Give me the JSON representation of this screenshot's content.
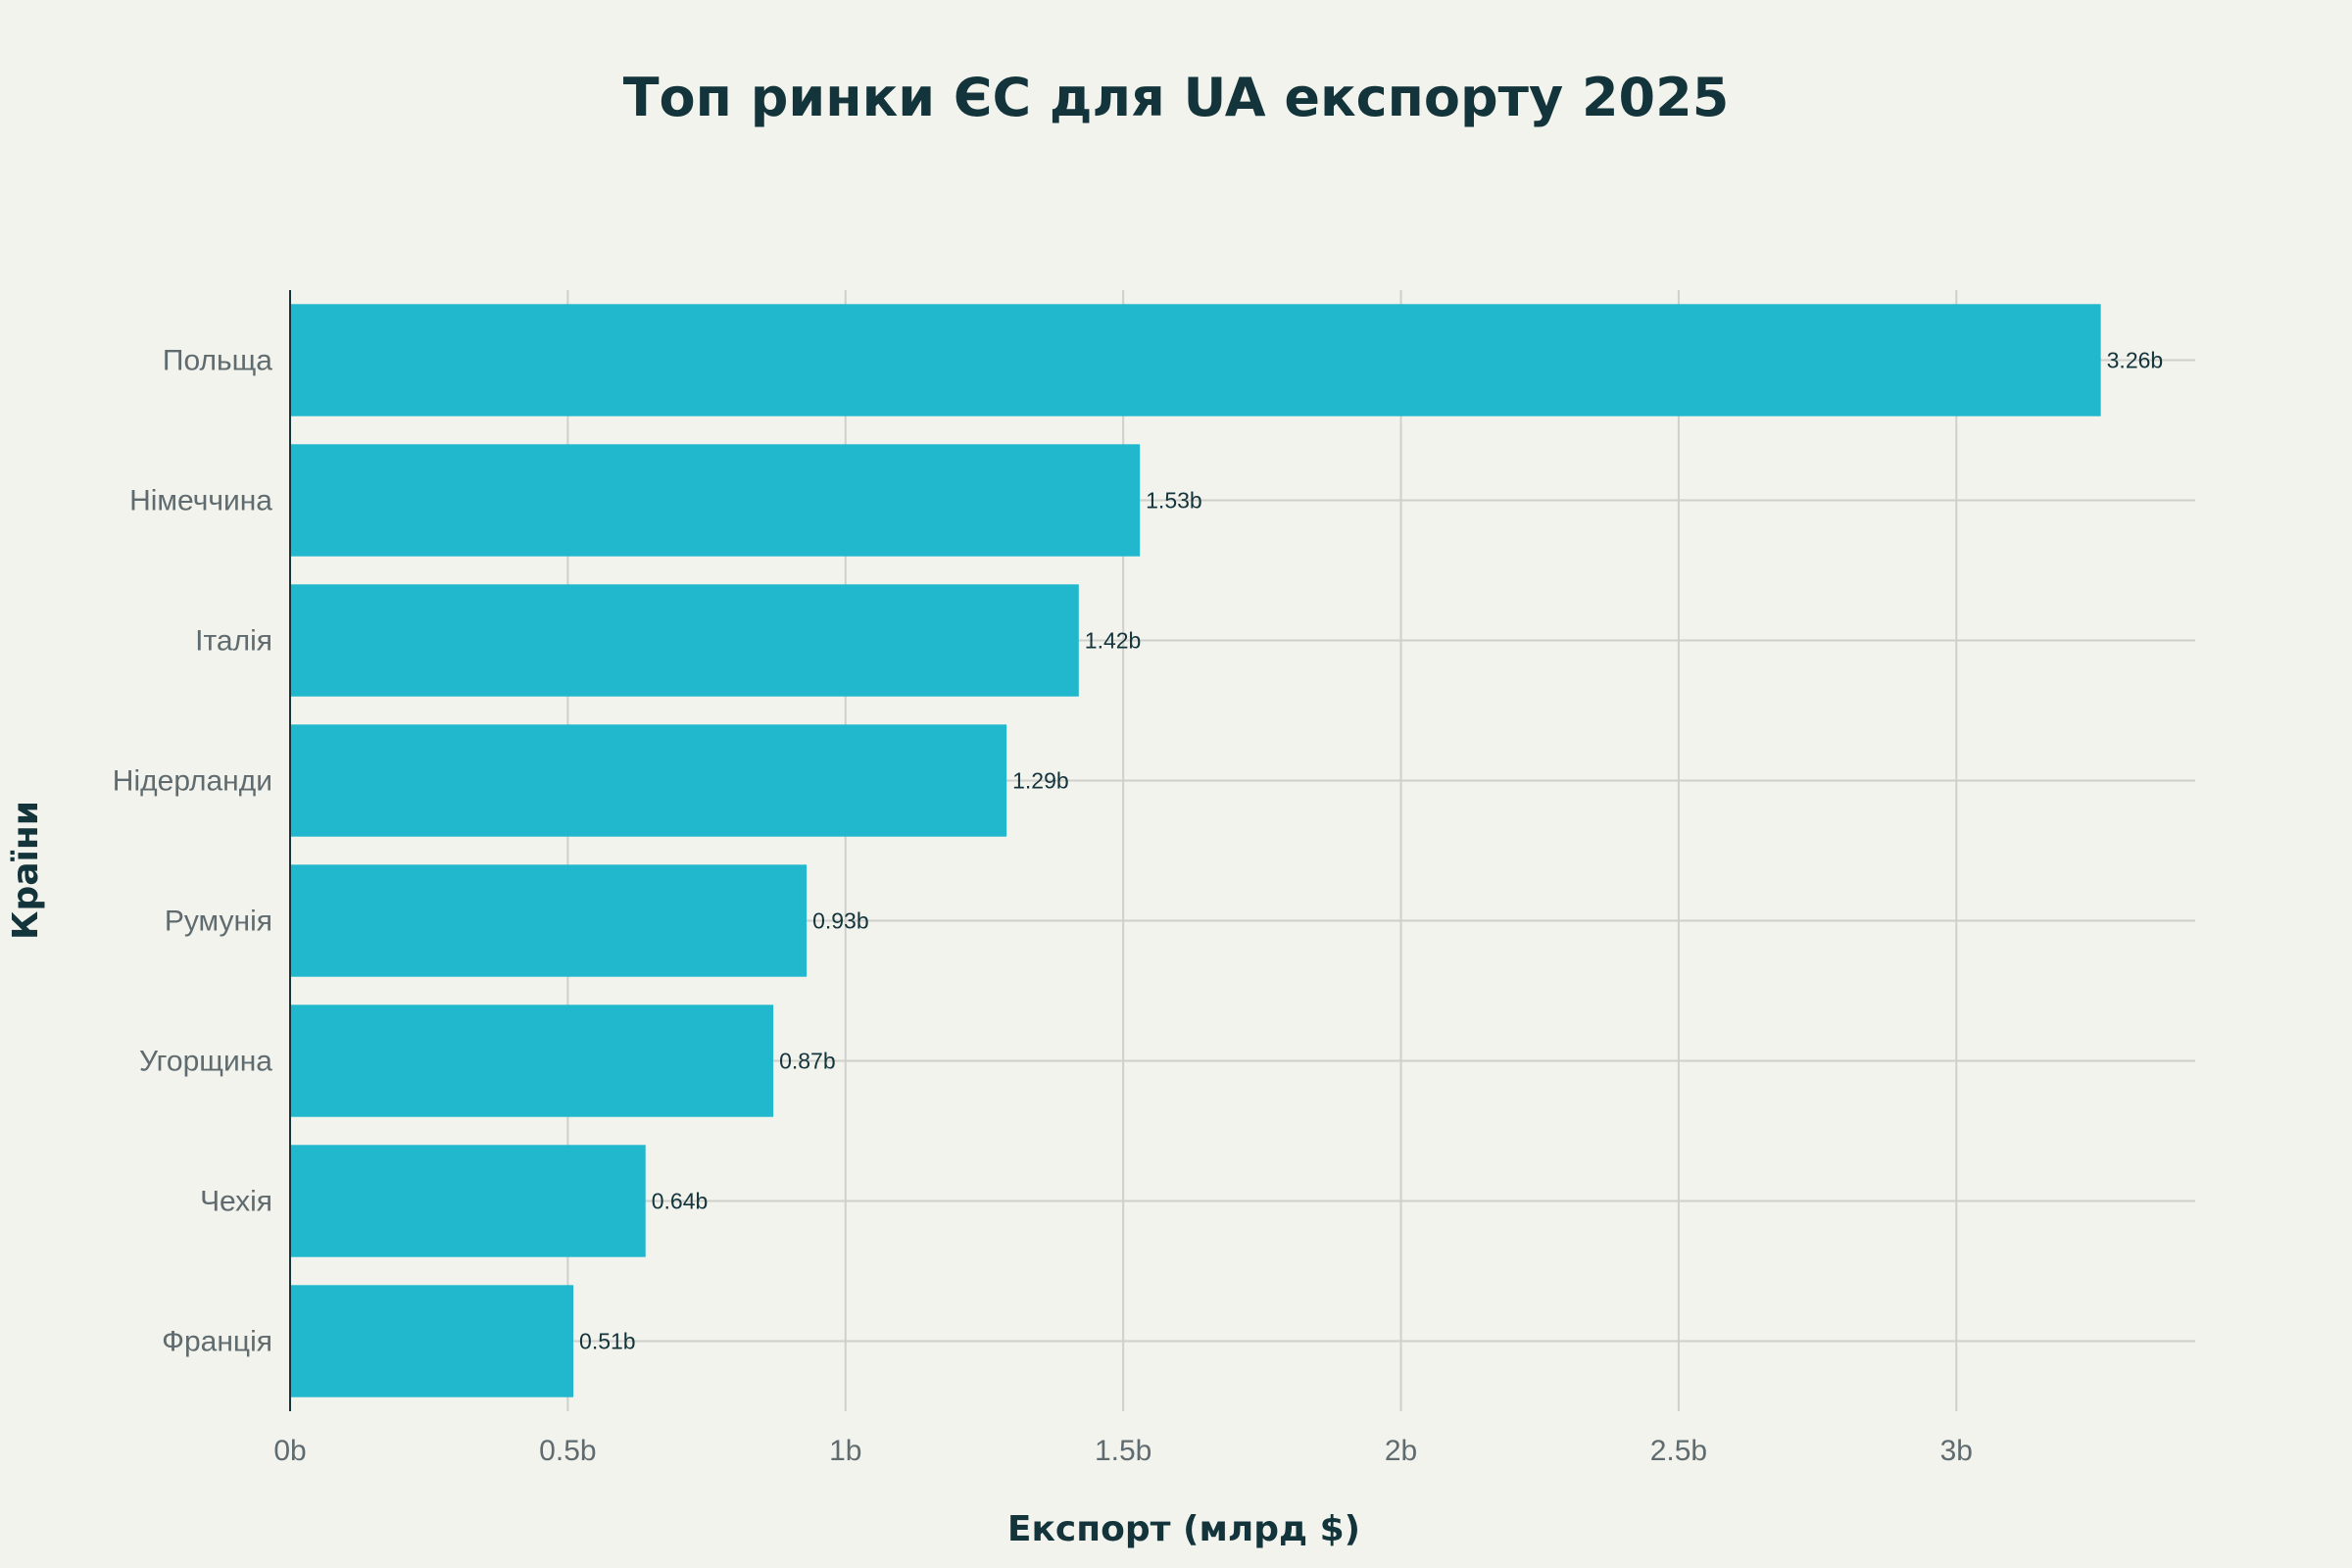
{
  "chart_data": {
    "type": "bar",
    "orientation": "horizontal",
    "title": "Топ ринки ЄС для UA експорту 2025",
    "xlabel": "Експорт (млрд $)",
    "ylabel": "Країни",
    "categories": [
      "Польща",
      "Німеччина",
      "Італія",
      "Нідерланди",
      "Румунія",
      "Угорщина",
      "Чехія",
      "Франція"
    ],
    "values": [
      3.26,
      1.53,
      1.42,
      1.29,
      0.93,
      0.87,
      0.64,
      0.51
    ],
    "data_labels": [
      "3.26b",
      "1.53b",
      "1.42b",
      "1.29b",
      "0.93b",
      "0.87b",
      "0.64b",
      "0.51b"
    ],
    "xticks": [
      0,
      0.5,
      1,
      1.5,
      2,
      2.5,
      3
    ],
    "xtick_labels": [
      "0b",
      "0.5b",
      "1b",
      "1.5b",
      "2b",
      "2.5b",
      "3b"
    ],
    "xlim": [
      0,
      3.43
    ],
    "grid": true,
    "bar_color": "#21b8cd"
  }
}
